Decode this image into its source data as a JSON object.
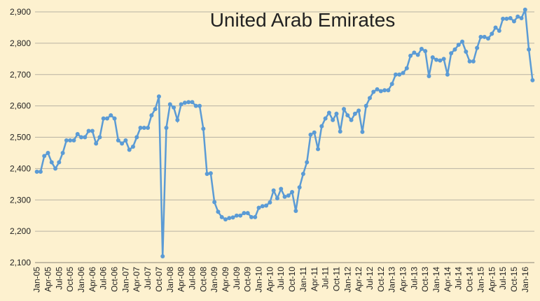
{
  "chart_data": {
    "type": "line",
    "title": "United Arab Emirates",
    "categories": [
      "Jan-05",
      null,
      null,
      "Apr-05",
      null,
      null,
      "Jul-05",
      null,
      null,
      "Oct-05",
      null,
      null,
      "Jan-06",
      null,
      null,
      "Apr-06",
      null,
      null,
      "Jul-06",
      null,
      null,
      "Oct-06",
      null,
      null,
      "Jan-07",
      null,
      null,
      "Apr-07",
      null,
      null,
      "Jul-07",
      null,
      null,
      "Oct-07",
      null,
      null,
      "Jan-08",
      null,
      null,
      "Apr-08",
      null,
      null,
      "Jul-08",
      null,
      null,
      "Oct-08",
      null,
      null,
      "Jan-09",
      null,
      null,
      "Apr-09",
      null,
      null,
      "Jul-09",
      null,
      null,
      "Oct-09",
      null,
      null,
      "Jan-10",
      null,
      null,
      "Apr-10",
      null,
      null,
      "Jul-10",
      null,
      null,
      "Oct-10",
      null,
      null,
      "Jan-11",
      null,
      null,
      "Apr-11",
      null,
      null,
      "Jul-11",
      null,
      null,
      "Oct-11",
      null,
      null,
      "Jan-12",
      null,
      null,
      "Apr-12",
      null,
      null,
      "Jul-12",
      null,
      null,
      "Oct-12",
      null,
      null,
      "Jan-13",
      null,
      null,
      "Apr-13",
      null,
      null,
      "Jul-13",
      null,
      null,
      "Oct-13",
      null,
      null,
      "Jan-14",
      null,
      null,
      "Apr-14",
      null,
      null,
      "Jul-14",
      null,
      null,
      "Oct-14",
      null,
      null,
      "Jan-15",
      null,
      null,
      "Apr-15",
      null,
      null,
      "Jul-15",
      null,
      null,
      "Oct-15",
      null,
      null,
      "Jan-16",
      null,
      null
    ],
    "values": [
      2390,
      2390,
      2440,
      2450,
      2420,
      2400,
      2420,
      2450,
      2490,
      2490,
      2490,
      2510,
      2500,
      2500,
      2520,
      2520,
      2480,
      2500,
      2560,
      2560,
      2570,
      2560,
      2490,
      2480,
      2490,
      2460,
      2470,
      2500,
      2530,
      2530,
      2530,
      2570,
      2590,
      2630,
      2120,
      2530,
      2605,
      2595,
      2555,
      2605,
      2610,
      2612,
      2612,
      2600,
      2600,
      2527,
      2383,
      2385,
      2293,
      2262,
      2245,
      2238,
      2242,
      2244,
      2250,
      2250,
      2258,
      2258,
      2245,
      2245,
      2275,
      2280,
      2282,
      2292,
      2330,
      2305,
      2335,
      2310,
      2314,
      2325,
      2265,
      2340,
      2383,
      2420,
      2508,
      2515,
      2462,
      2535,
      2560,
      2578,
      2555,
      2575,
      2518,
      2590,
      2570,
      2555,
      2575,
      2585,
      2517,
      2600,
      2625,
      2645,
      2653,
      2647,
      2650,
      2650,
      2670,
      2700,
      2700,
      2705,
      2720,
      2760,
      2770,
      2763,
      2782,
      2775,
      2695,
      2755,
      2747,
      2745,
      2750,
      2700,
      2768,
      2780,
      2795,
      2805,
      2773,
      2742,
      2742,
      2785,
      2820,
      2820,
      2815,
      2830,
      2850,
      2840,
      2878,
      2878,
      2880,
      2870,
      2885,
      2880,
      2907,
      2780,
      2682
    ],
    "color": "#5b9bd5",
    "ylim": [
      2100,
      2925
    ],
    "yticks": [
      {
        "value": 2100,
        "label": "2,100"
      },
      {
        "value": 2200,
        "label": "2,200"
      },
      {
        "value": 2300,
        "label": "2,300"
      },
      {
        "value": 2400,
        "label": "2,400"
      },
      {
        "value": 2500,
        "label": "2,500"
      },
      {
        "value": 2600,
        "label": "2,600"
      },
      {
        "value": 2700,
        "label": "2,700"
      },
      {
        "value": 2800,
        "label": "2,800"
      },
      {
        "value": 2900,
        "label": "2,900"
      }
    ],
    "grid": true
  }
}
